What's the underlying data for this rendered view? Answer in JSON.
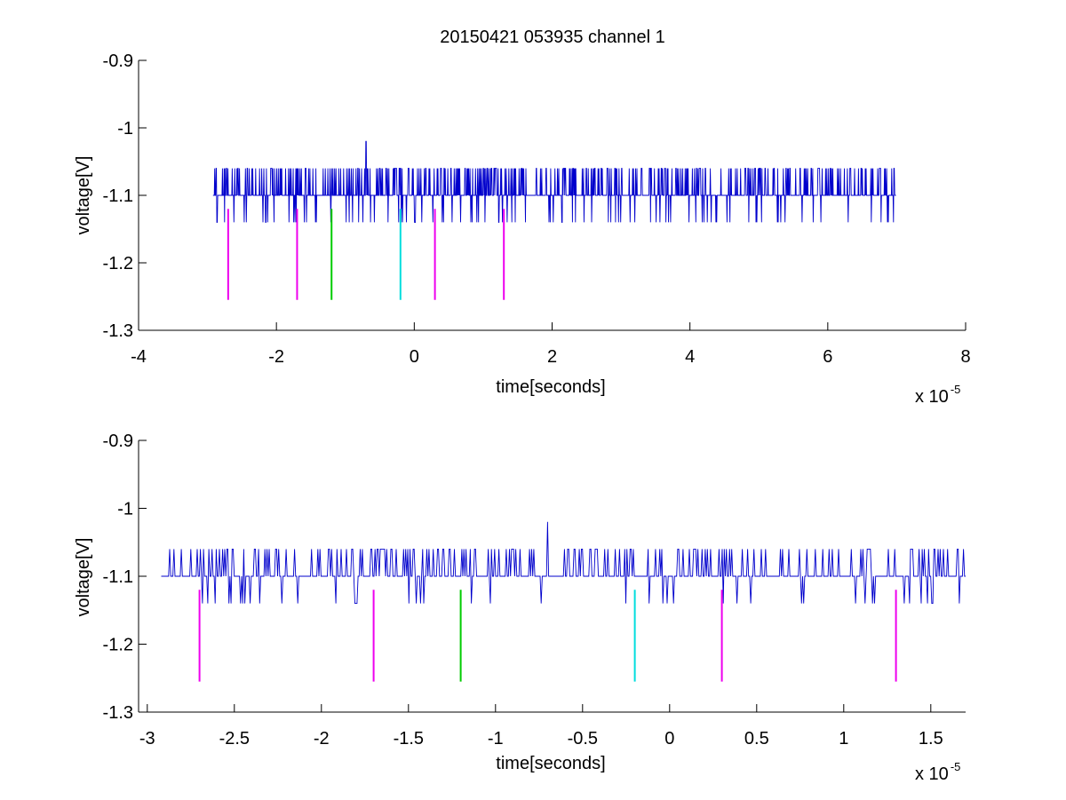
{
  "figure": {
    "title": "20150421 053935 channel 1"
  },
  "chart_data": [
    {
      "type": "line",
      "xlabel": "time[seconds]",
      "ylabel": "voltage[V]",
      "x_multiplier_base": "x 10",
      "x_multiplier_exp": "-5",
      "xlim": [
        -4,
        8
      ],
      "ylim": [
        -1.3,
        -0.9
      ],
      "y_reversed": true,
      "x_ticks": [
        -4,
        -2,
        0,
        2,
        4,
        6,
        8
      ],
      "x_tick_labels": [
        "-4",
        "-2",
        "0",
        "2",
        "4",
        "6",
        "8"
      ],
      "y_ticks": [
        -0.9,
        -1.0,
        -1.1,
        -1.2,
        -1.3
      ],
      "y_tick_labels": [
        "-0.9",
        "-1",
        "-1.1",
        "-1.2",
        "-1.3"
      ],
      "signal": {
        "color": "#0000cc",
        "x_range": [
          -2.92,
          6.99
        ],
        "baseline": -1.1,
        "levels": [
          -1.06,
          -1.1,
          -1.14
        ],
        "spike": {
          "x": -0.7,
          "y": -1.02
        }
      },
      "markers": [
        {
          "x": -2.7,
          "y_top": -1.12,
          "y_bottom": -1.255,
          "color": "#ee00ee"
        },
        {
          "x": -1.7,
          "y_top": -1.12,
          "y_bottom": -1.255,
          "color": "#ee00ee"
        },
        {
          "x": -1.2,
          "y_top": -1.12,
          "y_bottom": -1.255,
          "color": "#00cc00"
        },
        {
          "x": -0.2,
          "y_top": -1.12,
          "y_bottom": -1.255,
          "color": "#00dddd"
        },
        {
          "x": 0.3,
          "y_top": -1.12,
          "y_bottom": -1.255,
          "color": "#ee00ee"
        },
        {
          "x": 1.3,
          "y_top": -1.12,
          "y_bottom": -1.255,
          "color": "#ee00ee"
        }
      ]
    },
    {
      "type": "line",
      "xlabel": "time[seconds]",
      "ylabel": "voltage[V]",
      "x_multiplier_base": "x 10",
      "x_multiplier_exp": "-5",
      "xlim": [
        -3.05,
        1.7
      ],
      "ylim": [
        -1.3,
        -0.9
      ],
      "y_reversed": true,
      "x_ticks": [
        -3,
        -2.5,
        -2,
        -1.5,
        -1,
        -0.5,
        0,
        0.5,
        1,
        1.5
      ],
      "x_tick_labels": [
        "-3",
        "-2.5",
        "-2",
        "-1.5",
        "-1",
        "-0.5",
        "0",
        "0.5",
        "1",
        "1.5"
      ],
      "y_ticks": [
        -0.9,
        -1.0,
        -1.1,
        -1.2,
        -1.3
      ],
      "y_tick_labels": [
        "-0.9",
        "-1",
        "-1.1",
        "-1.2",
        "-1.3"
      ],
      "signal": {
        "color": "#0000cc",
        "x_range": [
          -2.92,
          1.7
        ],
        "baseline": -1.1,
        "levels": [
          -1.06,
          -1.1,
          -1.14
        ],
        "spike": {
          "x": -0.7,
          "y": -1.02
        }
      },
      "markers": [
        {
          "x": -2.7,
          "y_top": -1.12,
          "y_bottom": -1.255,
          "color": "#ee00ee"
        },
        {
          "x": -1.7,
          "y_top": -1.12,
          "y_bottom": -1.255,
          "color": "#ee00ee"
        },
        {
          "x": -1.2,
          "y_top": -1.12,
          "y_bottom": -1.255,
          "color": "#00cc00"
        },
        {
          "x": -0.2,
          "y_top": -1.12,
          "y_bottom": -1.255,
          "color": "#00dddd"
        },
        {
          "x": 0.3,
          "y_top": -1.12,
          "y_bottom": -1.255,
          "color": "#ee00ee"
        },
        {
          "x": 1.3,
          "y_top": -1.12,
          "y_bottom": -1.255,
          "color": "#ee00ee"
        }
      ]
    }
  ]
}
